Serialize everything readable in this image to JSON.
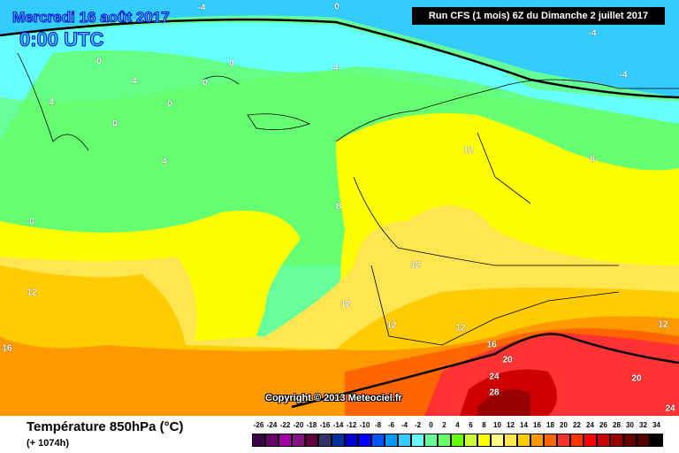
{
  "header": {
    "date": "Mercredi 16 août 2017",
    "time": "0:00 UTC",
    "run": "Run CFS (1 mois) 6Z du Dimanche 2 juillet 2017"
  },
  "footer": {
    "title": "Température 850hPa (°C)",
    "lead_time": "(+ 1074h)",
    "copyright": "Copyright © 2013 Meteociel.fr"
  },
  "legend": {
    "labels": [
      "-26",
      "-24",
      "-22",
      "-20",
      "-18",
      "-16",
      "-14",
      "-12",
      "-10",
      "-8",
      "-6",
      "-4",
      "-2",
      "0",
      "2",
      "4",
      "6",
      "8",
      "10",
      "12",
      "14",
      "16",
      "18",
      "20",
      "22",
      "24",
      "26",
      "28",
      "30",
      "32",
      "34"
    ],
    "colors": [
      "#3c0045",
      "#660066",
      "#a300a3",
      "#801480",
      "#600040",
      "#333366",
      "#003399",
      "#0000cc",
      "#0000ff",
      "#0055ff",
      "#0099ff",
      "#33ccff",
      "#66ffff",
      "#66ff99",
      "#66ff66",
      "#66ff00",
      "#ccff33",
      "#ffff00",
      "#ffff88",
      "#ffe650",
      "#ffcc00",
      "#ff9900",
      "#ff6600",
      "#ff3333",
      "#ff3300",
      "#ff0000",
      "#cc0000",
      "#990000",
      "#660000",
      "#500000",
      "#000000"
    ]
  },
  "contour_labels": [
    "-4",
    "0",
    "-4",
    "-4",
    "0",
    "4",
    "0",
    "0",
    "4",
    "4",
    "0",
    "0",
    "4",
    "0",
    "12",
    "8",
    "8",
    "12",
    "12",
    "12",
    "12",
    "12",
    "12",
    "16",
    "16",
    "20",
    "24",
    "28",
    "20",
    "24"
  ]
}
